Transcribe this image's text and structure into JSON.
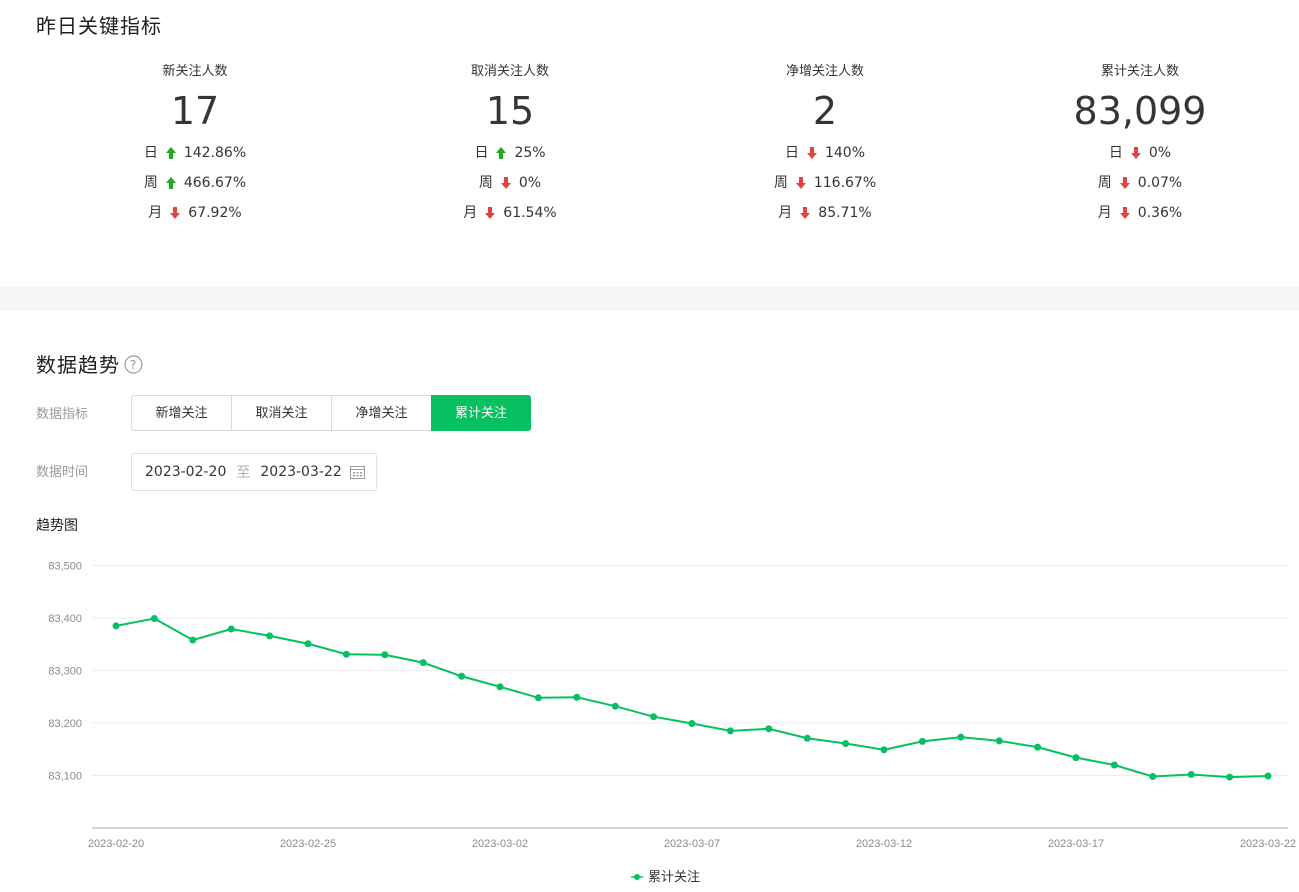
{
  "section1": {
    "title": "昨日关键指标"
  },
  "metrics": [
    {
      "label": "新关注人数",
      "value": "17",
      "rows": [
        {
          "period": "日",
          "dir": "up",
          "pct": "142.86%"
        },
        {
          "period": "周",
          "dir": "up",
          "pct": "466.67%"
        },
        {
          "period": "月",
          "dir": "down",
          "pct": "67.92%"
        }
      ]
    },
    {
      "label": "取消关注人数",
      "value": "15",
      "rows": [
        {
          "period": "日",
          "dir": "up",
          "pct": "25%"
        },
        {
          "period": "周",
          "dir": "down",
          "pct": "0%"
        },
        {
          "period": "月",
          "dir": "down",
          "pct": "61.54%"
        }
      ]
    },
    {
      "label": "净增关注人数",
      "value": "2",
      "rows": [
        {
          "period": "日",
          "dir": "down",
          "pct": "140%"
        },
        {
          "period": "周",
          "dir": "down",
          "pct": "116.67%"
        },
        {
          "period": "月",
          "dir": "down",
          "pct": "85.71%"
        }
      ]
    },
    {
      "label": "累计关注人数",
      "value": "83,099",
      "rows": [
        {
          "period": "日",
          "dir": "down",
          "pct": "0%"
        },
        {
          "period": "周",
          "dir": "down",
          "pct": "0.07%"
        },
        {
          "period": "月",
          "dir": "down",
          "pct": "0.36%"
        }
      ]
    }
  ],
  "colors": {
    "up": "#1aad19",
    "down": "#e64340",
    "accent": "#07c160"
  },
  "section2": {
    "title": "数据趋势",
    "metric_label": "数据指标",
    "metric_buttons": [
      "新增关注",
      "取消关注",
      "净增关注",
      "累计关注"
    ],
    "active_button": 3,
    "time_label": "数据时间",
    "date_start": "2023-02-20",
    "date_sep": "至",
    "date_end": "2023-03-22",
    "chart_title": "趋势图"
  },
  "chart_data": {
    "type": "line",
    "ylim": [
      83000,
      83500
    ],
    "yticks": [
      "83,100",
      "83,200",
      "83,300",
      "83,400",
      "83,500"
    ],
    "ytick_values": [
      83100,
      83200,
      83300,
      83400,
      83500
    ],
    "xtick_labels": [
      "2023-02-20",
      "2023-02-25",
      "2023-03-02",
      "2023-03-07",
      "2023-03-12",
      "2023-03-17",
      "2023-03-22"
    ],
    "x": [
      "2023-02-20",
      "2023-02-21",
      "2023-02-22",
      "2023-02-23",
      "2023-02-24",
      "2023-02-25",
      "2023-02-26",
      "2023-02-27",
      "2023-02-28",
      "2023-03-01",
      "2023-03-02",
      "2023-03-03",
      "2023-03-04",
      "2023-03-05",
      "2023-03-06",
      "2023-03-07",
      "2023-03-08",
      "2023-03-09",
      "2023-03-10",
      "2023-03-11",
      "2023-03-12",
      "2023-03-13",
      "2023-03-14",
      "2023-03-15",
      "2023-03-16",
      "2023-03-17",
      "2023-03-18",
      "2023-03-19",
      "2023-03-20",
      "2023-03-21",
      "2023-03-22"
    ],
    "series": [
      {
        "name": "累计关注",
        "color": "#07c160",
        "values": [
          83385,
          83399,
          83358,
          83379,
          83366,
          83351,
          83331,
          83330,
          83315,
          83289,
          83269,
          83248,
          83249,
          83232,
          83212,
          83199,
          83185,
          83189,
          83171,
          83161,
          83149,
          83165,
          83173,
          83166,
          83154,
          83134,
          83120,
          83098,
          83102,
          83097,
          83099
        ]
      }
    ],
    "legend_position": "bottom-center",
    "grid": true
  }
}
